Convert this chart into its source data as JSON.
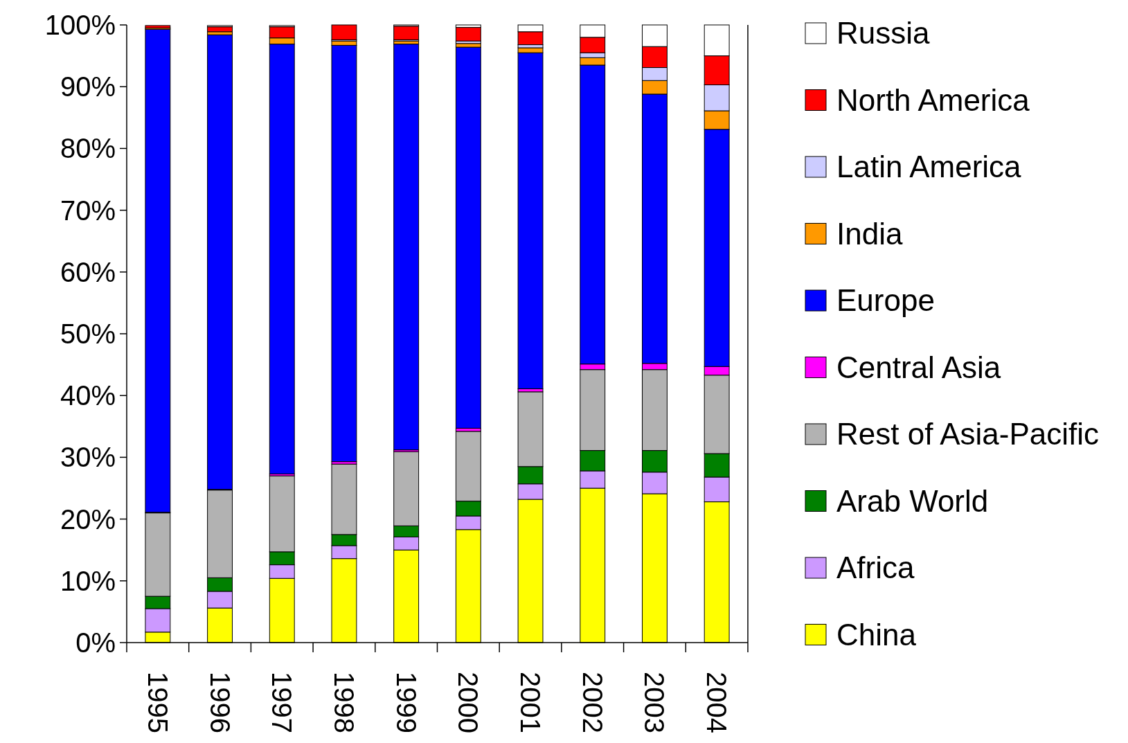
{
  "chart_data": {
    "type": "bar",
    "stacked": true,
    "legend": "right",
    "grid": false,
    "categories": [
      "1995",
      "1996",
      "1997",
      "1998",
      "1999",
      "2000",
      "2001",
      "2002",
      "2003",
      "2004"
    ],
    "ylim": [
      0,
      100
    ],
    "yticks": [
      {
        "value": 0,
        "label": "0%"
      },
      {
        "value": 10,
        "label": "10%"
      },
      {
        "value": 20,
        "label": "20%"
      },
      {
        "value": 30,
        "label": "30%"
      },
      {
        "value": 40,
        "label": "40%"
      },
      {
        "value": 50,
        "label": "50%"
      },
      {
        "value": 60,
        "label": "60%"
      },
      {
        "value": 70,
        "label": "70%"
      },
      {
        "value": 80,
        "label": "80%"
      },
      {
        "value": 90,
        "label": "90%"
      },
      {
        "value": 100,
        "label": "100%"
      }
    ],
    "series": [
      {
        "name": "China",
        "color": "#ffff00",
        "values": [
          1.7,
          5.6,
          10.4,
          13.6,
          15.0,
          18.3,
          23.2,
          25.0,
          24.1,
          22.8
        ]
      },
      {
        "name": "Africa",
        "color": "#cc99ff",
        "values": [
          3.8,
          2.7,
          2.2,
          2.1,
          2.1,
          2.2,
          2.5,
          2.8,
          3.5,
          4.0
        ]
      },
      {
        "name": "Arab World",
        "color": "#008000",
        "values": [
          2.0,
          2.2,
          2.1,
          1.8,
          1.8,
          2.4,
          2.8,
          3.3,
          3.5,
          3.8
        ]
      },
      {
        "name": "Rest of Asia-Pacific",
        "color": "#b2b2b2",
        "values": [
          13.5,
          14.2,
          12.3,
          11.4,
          12.0,
          11.3,
          12.1,
          13.1,
          13.1,
          12.7
        ]
      },
      {
        "name": "Central Asia",
        "color": "#ff00ff",
        "values": [
          0.1,
          0.1,
          0.3,
          0.4,
          0.3,
          0.5,
          0.5,
          0.9,
          1.0,
          1.4
        ]
      },
      {
        "name": "Europe",
        "color": "#0000ff",
        "values": [
          78.2,
          73.6,
          69.6,
          67.4,
          65.7,
          61.7,
          54.4,
          48.4,
          43.6,
          38.4
        ]
      },
      {
        "name": "India",
        "color": "#ff9900",
        "values": [
          0.2,
          0.5,
          1.0,
          0.7,
          0.5,
          0.6,
          0.8,
          1.2,
          2.2,
          3.0
        ]
      },
      {
        "name": "Latin America",
        "color": "#ccccff",
        "values": [
          null,
          null,
          null,
          0.2,
          0.2,
          0.4,
          0.5,
          0.8,
          2.1,
          4.2
        ]
      },
      {
        "name": "North America",
        "color": "#ff0000",
        "values": [
          0.4,
          0.8,
          1.8,
          2.4,
          2.2,
          2.2,
          2.1,
          2.5,
          3.4,
          4.7
        ]
      },
      {
        "name": "Russia",
        "color": "#ffffff",
        "values": [
          0.0,
          0.2,
          0.2,
          0.0,
          0.2,
          0.4,
          1.1,
          2.0,
          3.5,
          5.0
        ]
      }
    ]
  }
}
